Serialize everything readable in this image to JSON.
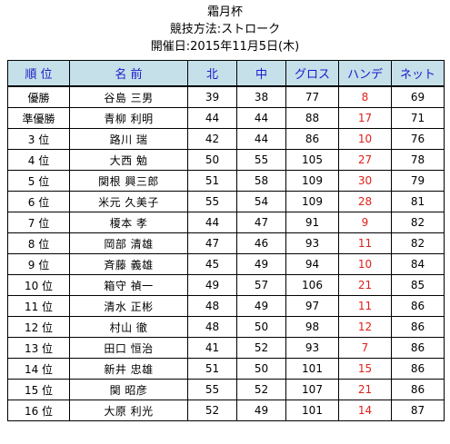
{
  "header": {
    "title": "霜月杯",
    "format": "競技方法:ストローク",
    "date": "開催日:2015年11月5日(木)"
  },
  "colors": {
    "header_bg": "#c5e0e9",
    "header_text": "#1a1acc",
    "handicap_text": "#e0201a"
  },
  "table": {
    "columns": [
      "順 位",
      "名 前",
      "北",
      "中",
      "グロス",
      "ハンデ",
      "ネット"
    ],
    "rows": [
      {
        "rank": "優勝",
        "name": "谷島 三男",
        "north": "39",
        "middle": "38",
        "gross": "77",
        "handicap": "8",
        "net": "69"
      },
      {
        "rank": "準優勝",
        "name": "青柳 利明",
        "north": "44",
        "middle": "44",
        "gross": "88",
        "handicap": "17",
        "net": "71"
      },
      {
        "rank": "3 位",
        "name": "路川 瑞",
        "north": "42",
        "middle": "44",
        "gross": "86",
        "handicap": "10",
        "net": "76"
      },
      {
        "rank": "4 位",
        "name": "大西 勉",
        "north": "50",
        "middle": "55",
        "gross": "105",
        "handicap": "27",
        "net": "78"
      },
      {
        "rank": "5 位",
        "name": "関根 興三郎",
        "north": "51",
        "middle": "58",
        "gross": "109",
        "handicap": "30",
        "net": "79"
      },
      {
        "rank": "6 位",
        "name": "米元 久美子",
        "north": "55",
        "middle": "54",
        "gross": "109",
        "handicap": "28",
        "net": "81"
      },
      {
        "rank": "7 位",
        "name": "榎本 孝",
        "north": "44",
        "middle": "47",
        "gross": "91",
        "handicap": "9",
        "net": "82"
      },
      {
        "rank": "8 位",
        "name": "岡部 清雄",
        "north": "47",
        "middle": "46",
        "gross": "93",
        "handicap": "11",
        "net": "82"
      },
      {
        "rank": "9 位",
        "name": "斉藤 義雄",
        "north": "45",
        "middle": "49",
        "gross": "94",
        "handicap": "10",
        "net": "84"
      },
      {
        "rank": "10 位",
        "name": "箱守 禎一",
        "north": "49",
        "middle": "57",
        "gross": "106",
        "handicap": "21",
        "net": "85"
      },
      {
        "rank": "11 位",
        "name": "清水 正彬",
        "north": "48",
        "middle": "49",
        "gross": "97",
        "handicap": "11",
        "net": "86"
      },
      {
        "rank": "12 位",
        "name": "村山 徹",
        "north": "48",
        "middle": "50",
        "gross": "98",
        "handicap": "12",
        "net": "86"
      },
      {
        "rank": "13 位",
        "name": "田口 恒治",
        "north": "41",
        "middle": "52",
        "gross": "93",
        "handicap": "7",
        "net": "86"
      },
      {
        "rank": "14 位",
        "name": "新井 忠雄",
        "north": "51",
        "middle": "50",
        "gross": "101",
        "handicap": "15",
        "net": "86"
      },
      {
        "rank": "15 位",
        "name": "関 昭彦",
        "north": "55",
        "middle": "52",
        "gross": "107",
        "handicap": "21",
        "net": "86"
      },
      {
        "rank": "16 位",
        "name": "大原 利光",
        "north": "52",
        "middle": "49",
        "gross": "101",
        "handicap": "14",
        "net": "87"
      }
    ]
  }
}
